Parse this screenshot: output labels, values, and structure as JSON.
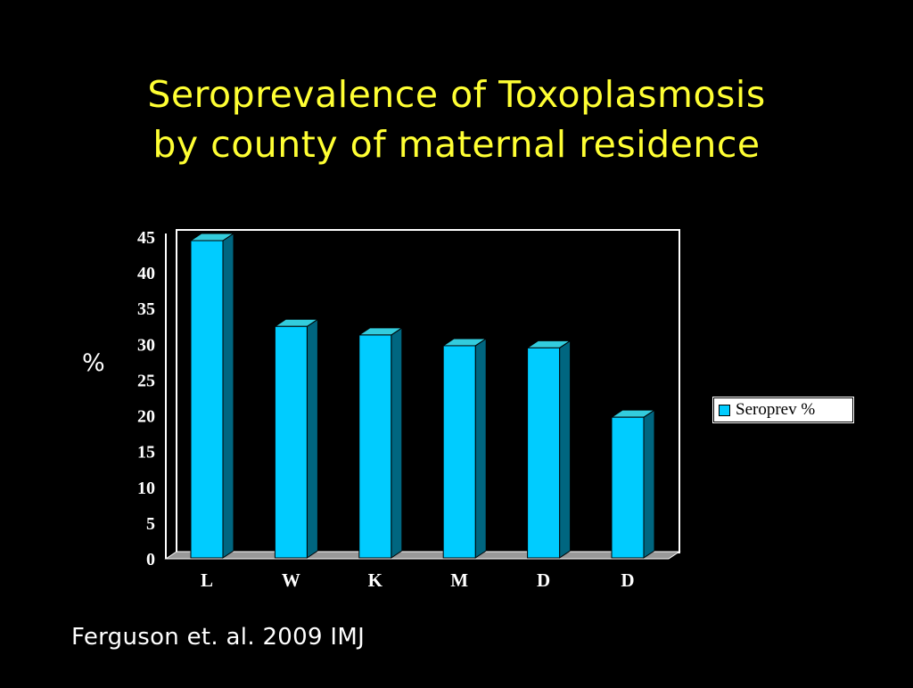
{
  "slide": {
    "title_line1": "Seroprevalence of Toxoplasmosis",
    "title_line2": "by county of maternal residence",
    "citation": "Ferguson et. al. 2009 IMJ"
  },
  "colors": {
    "background": "#000000",
    "title": "#ffff33",
    "bar_front": "#00ccff",
    "bar_side": "#006680",
    "bar_top": "#33ccdd",
    "floor": "#999999"
  },
  "chart_data": {
    "type": "bar",
    "categories": [
      "L",
      "W",
      "K",
      "M",
      "D",
      "D"
    ],
    "series": [
      {
        "name": "Seroprev %",
        "values": [
          44.5,
          32.5,
          31.3,
          29.8,
          29.5,
          19.8
        ]
      }
    ],
    "ylabel": "%",
    "ylim": [
      0,
      45
    ],
    "yticks": [
      "0",
      "5",
      "10",
      "15",
      "20",
      "25",
      "30",
      "35",
      "40",
      "45"
    ],
    "grid": false,
    "legend_position": "right",
    "style": "3d"
  }
}
